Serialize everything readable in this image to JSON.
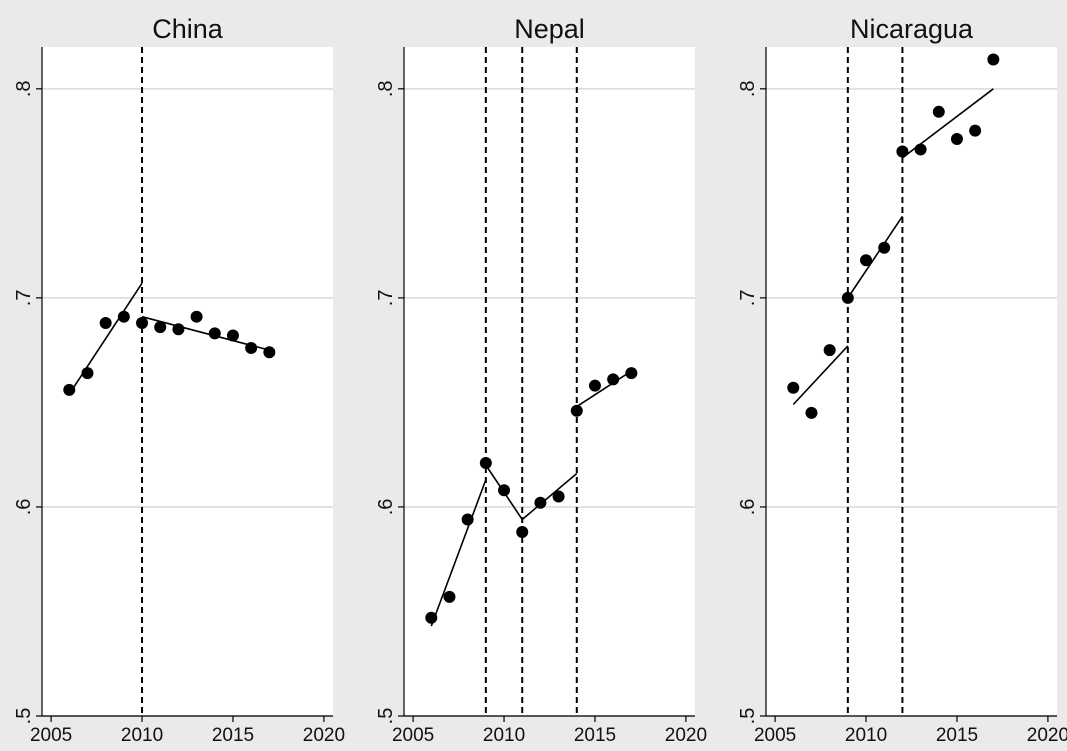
{
  "figure": {
    "background": "#eaeaea",
    "plot_background": "#ffffff",
    "gridline_color": "#d9d9d9",
    "marker_color": "#000000"
  },
  "chart_data": [
    {
      "type": "scatter",
      "title": "China",
      "xlim": [
        2004.5,
        2020.5
      ],
      "ylim": [
        0.5,
        0.82
      ],
      "xticks": [
        2005,
        2010,
        2015,
        2020
      ],
      "xtick_labels": [
        "2005",
        "2010",
        "2015",
        "2020"
      ],
      "yticks": [
        0.5,
        0.6,
        0.7,
        0.8
      ],
      "ytick_labels": [
        ".5",
        ".6",
        ".7",
        ".8"
      ],
      "grid": "horizontal",
      "breaks": [
        2010
      ],
      "points": [
        {
          "x": 2006,
          "y": 0.656
        },
        {
          "x": 2007,
          "y": 0.664
        },
        {
          "x": 2008,
          "y": 0.688
        },
        {
          "x": 2009,
          "y": 0.691
        },
        {
          "x": 2010,
          "y": 0.688
        },
        {
          "x": 2011,
          "y": 0.686
        },
        {
          "x": 2012,
          "y": 0.685
        },
        {
          "x": 2013,
          "y": 0.691
        },
        {
          "x": 2014,
          "y": 0.683
        },
        {
          "x": 2015,
          "y": 0.682
        },
        {
          "x": 2016,
          "y": 0.676
        },
        {
          "x": 2017,
          "y": 0.674
        }
      ],
      "fits": [
        {
          "x": [
            2006,
            2010
          ],
          "y": [
            0.654,
            0.707
          ]
        },
        {
          "x": [
            2010,
            2017
          ],
          "y": [
            0.691,
            0.675
          ]
        }
      ]
    },
    {
      "type": "scatter",
      "title": "Nepal",
      "xlim": [
        2004.5,
        2020.5
      ],
      "ylim": [
        0.5,
        0.82
      ],
      "xticks": [
        2005,
        2010,
        2015,
        2020
      ],
      "xtick_labels": [
        "2005",
        "2010",
        "2015",
        "2020"
      ],
      "yticks": [
        0.5,
        0.6,
        0.7,
        0.8
      ],
      "ytick_labels": [
        ".5",
        ".6",
        ".7",
        ".8"
      ],
      "grid": "horizontal",
      "breaks": [
        2009,
        2011,
        2014
      ],
      "points": [
        {
          "x": 2006,
          "y": 0.547
        },
        {
          "x": 2007,
          "y": 0.557
        },
        {
          "x": 2008,
          "y": 0.594
        },
        {
          "x": 2009,
          "y": 0.621
        },
        {
          "x": 2010,
          "y": 0.608
        },
        {
          "x": 2011,
          "y": 0.588
        },
        {
          "x": 2012,
          "y": 0.602
        },
        {
          "x": 2013,
          "y": 0.605
        },
        {
          "x": 2014,
          "y": 0.646
        },
        {
          "x": 2015,
          "y": 0.658
        },
        {
          "x": 2016,
          "y": 0.661
        },
        {
          "x": 2017,
          "y": 0.664
        }
      ],
      "fits": [
        {
          "x": [
            2006,
            2009
          ],
          "y": [
            0.543,
            0.613
          ]
        },
        {
          "x": [
            2009,
            2011
          ],
          "y": [
            0.62,
            0.594
          ]
        },
        {
          "x": [
            2011,
            2014
          ],
          "y": [
            0.594,
            0.616
          ]
        },
        {
          "x": [
            2014,
            2017
          ],
          "y": [
            0.648,
            0.665
          ]
        }
      ]
    },
    {
      "type": "scatter",
      "title": "Nicaragua",
      "xlim": [
        2004.5,
        2020.5
      ],
      "ylim": [
        0.5,
        0.82
      ],
      "xticks": [
        2005,
        2010,
        2015,
        2020
      ],
      "xtick_labels": [
        "2005",
        "2010",
        "2015",
        "2020"
      ],
      "yticks": [
        0.5,
        0.6,
        0.7,
        0.8
      ],
      "ytick_labels": [
        ".5",
        ".6",
        ".7",
        ".8"
      ],
      "grid": "horizontal",
      "breaks": [
        2009,
        2012
      ],
      "points": [
        {
          "x": 2006,
          "y": 0.657
        },
        {
          "x": 2007,
          "y": 0.645
        },
        {
          "x": 2008,
          "y": 0.675
        },
        {
          "x": 2009,
          "y": 0.7
        },
        {
          "x": 2010,
          "y": 0.718
        },
        {
          "x": 2011,
          "y": 0.724
        },
        {
          "x": 2012,
          "y": 0.77
        },
        {
          "x": 2013,
          "y": 0.771
        },
        {
          "x": 2014,
          "y": 0.789
        },
        {
          "x": 2015,
          "y": 0.776
        },
        {
          "x": 2016,
          "y": 0.78
        },
        {
          "x": 2017,
          "y": 0.814
        }
      ],
      "fits": [
        {
          "x": [
            2006,
            2009
          ],
          "y": [
            0.649,
            0.677
          ]
        },
        {
          "x": [
            2009,
            2012
          ],
          "y": [
            0.7,
            0.739
          ]
        },
        {
          "x": [
            2012,
            2017
          ],
          "y": [
            0.767,
            0.8
          ]
        }
      ]
    }
  ]
}
